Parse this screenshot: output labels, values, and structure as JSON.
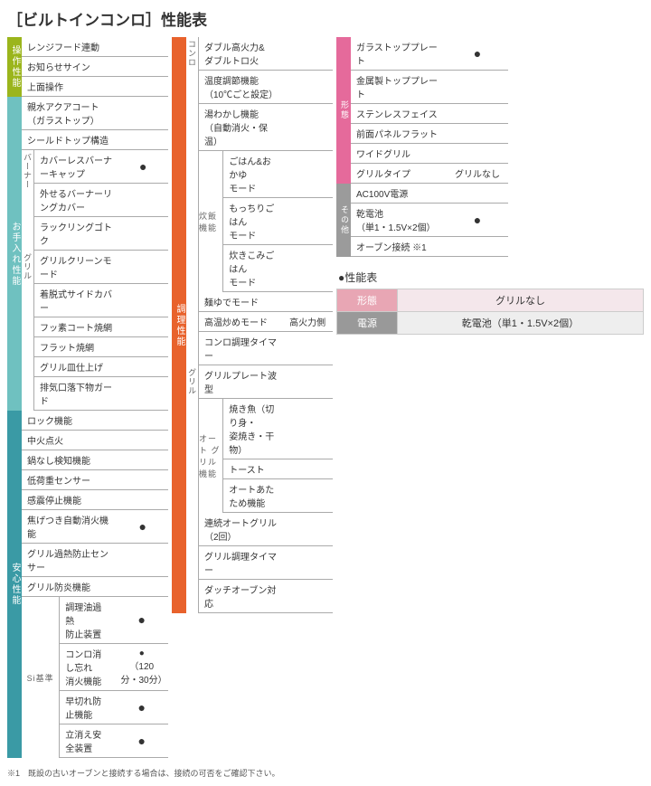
{
  "title_prefix": "［ビルトインコンロ］",
  "title_main": "性能表",
  "colors": {
    "tab_operate": "#9bb51c",
    "tab_maint": "#6fc1c0",
    "tab_safety": "#3a9aa5",
    "tab_cook": "#e8622c",
    "tab_form": "#e56a9b",
    "tab_other": "#9b9b9b"
  },
  "col1": {
    "operate": {
      "tab": "操作性能",
      "rows": [
        {
          "label": "レンジフード連動",
          "val": ""
        },
        {
          "label": "お知らせサイン",
          "val": ""
        },
        {
          "label": "上面操作",
          "val": ""
        }
      ]
    },
    "maint": {
      "tab": "お手入れ性能",
      "rows_top": [
        {
          "label": "親水アクアコート（ガラストップ）",
          "val": ""
        },
        {
          "label": "シールドトップ構造",
          "val": ""
        }
      ],
      "burner_tab": "バーナー",
      "burner_rows": [
        {
          "label": "カバーレスバーナーキャップ",
          "val": "●"
        },
        {
          "label": "外せるバーナーリングカバー",
          "val": ""
        },
        {
          "label": "ラックリングゴトク",
          "val": ""
        }
      ],
      "grill_tab": "グリル",
      "grill_rows": [
        {
          "label": "グリルクリーンモード",
          "val": ""
        },
        {
          "label": "着脱式サイドカバー",
          "val": ""
        },
        {
          "label": "フッ素コート焼網",
          "val": ""
        },
        {
          "label": "フラット焼網",
          "val": ""
        },
        {
          "label": "グリル皿仕上げ",
          "val": ""
        },
        {
          "label": "排気口落下物ガード",
          "val": ""
        }
      ]
    },
    "safety": {
      "tab": "安心性能",
      "rows": [
        {
          "label": "ロック機能",
          "val": ""
        },
        {
          "label": "中火点火",
          "val": ""
        },
        {
          "label": "鍋なし検知機能",
          "val": ""
        },
        {
          "label": "低荷重センサー",
          "val": ""
        },
        {
          "label": "感震停止機能",
          "val": ""
        },
        {
          "label": "焦げつき自動消火機能",
          "val": "●"
        },
        {
          "label": "グリル過熱防止センサー",
          "val": ""
        },
        {
          "label": "グリル防炎機能",
          "val": ""
        }
      ],
      "si_tab": "Si基準",
      "si_rows": [
        {
          "label": "調理油過熱\n防止装置",
          "val": "●"
        },
        {
          "label": "コンロ消し忘れ\n消火機能",
          "val": "●\n（120分・30分）"
        },
        {
          "label": "早切れ防止機能",
          "val": "●"
        },
        {
          "label": "立消え安全装置",
          "val": "●"
        }
      ]
    }
  },
  "col2": {
    "cook": {
      "tab": "調理性能",
      "stove_tab": "コンロ",
      "stove_rows_top": [
        {
          "label": "ダブル高火力&\nダブルトロ火",
          "val": ""
        },
        {
          "label": "温度調節機能\n（10℃ごと設定）",
          "val": ""
        },
        {
          "label": "湯わかし機能\n（自動消火・保温）",
          "val": ""
        }
      ],
      "rice_tab": "炊飯\n機能",
      "rice_rows": [
        {
          "label": "ごはん&おかゆ\nモード",
          "val": ""
        },
        {
          "label": "もっちりごはん\nモード",
          "val": ""
        },
        {
          "label": "炊きこみごはん\nモード",
          "val": ""
        }
      ],
      "stove_rows_mid": [
        {
          "label": "麺ゆでモード",
          "val": ""
        },
        {
          "label": "高温炒めモード",
          "val": "高火力側"
        },
        {
          "label": "コンロ調理タイマー",
          "val": ""
        }
      ],
      "grill_tab": "グリル",
      "grill_rows_top": [
        {
          "label": "グリルプレート波型",
          "val": ""
        }
      ],
      "auto_tab": "オート\nグリル\n機能",
      "auto_rows": [
        {
          "label": "焼き魚（切り身・\n姿焼き・干物）",
          "val": ""
        },
        {
          "label": "トースト",
          "val": ""
        },
        {
          "label": "オートあたため機能",
          "val": ""
        }
      ],
      "grill_rows_bot": [
        {
          "label": "連続オートグリル（2回）",
          "val": ""
        },
        {
          "label": "グリル調理タイマー",
          "val": ""
        },
        {
          "label": "ダッチオーブン対応",
          "val": ""
        }
      ]
    }
  },
  "col3": {
    "form": {
      "tab": "形態",
      "rows": [
        {
          "label": "ガラストッププレート",
          "val": "●"
        },
        {
          "label": "金属製トッププレート",
          "val": ""
        },
        {
          "label": "ステンレスフェイス",
          "val": ""
        },
        {
          "label": "前面パネルフラット",
          "val": ""
        },
        {
          "label": "ワイドグリル",
          "val": ""
        },
        {
          "label": "グリルタイプ",
          "val": "グリルなし"
        }
      ]
    },
    "other": {
      "tab": "その他",
      "rows": [
        {
          "label": "AC100V電源",
          "val": ""
        },
        {
          "label": "乾電池\n（単1・1.5V×2個）",
          "val": "●"
        },
        {
          "label": "オーブン接続 ※1",
          "val": ""
        }
      ]
    }
  },
  "summary": {
    "title": "●性能表",
    "h1": "形態",
    "v1": "グリルなし",
    "h2": "電源",
    "v2": "乾電池（単1・1.5V×2個）"
  },
  "footnote": "※1　既設の古いオーブンと接続する場合は、接続の可否をご確認下さい。"
}
